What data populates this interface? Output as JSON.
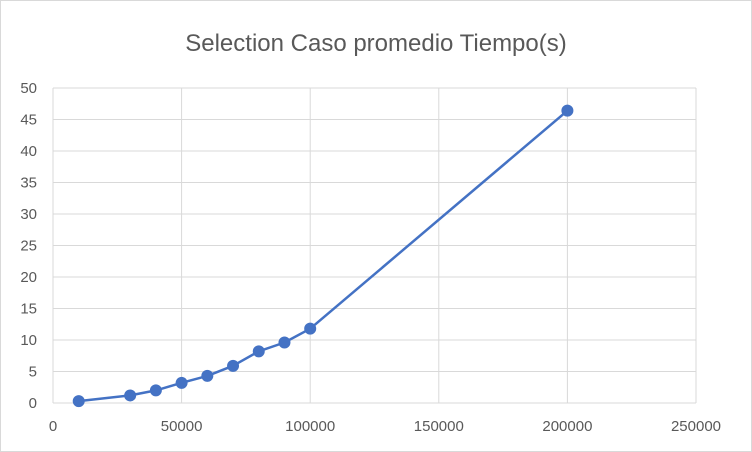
{
  "chart_data": {
    "type": "line",
    "title": "Selection Caso promedio Tiempo(s)",
    "xlabel": "",
    "ylabel": "",
    "xlim": [
      0,
      250000
    ],
    "ylim": [
      0,
      50
    ],
    "xticks": [
      0,
      50000,
      100000,
      150000,
      200000,
      250000
    ],
    "yticks": [
      0,
      5,
      10,
      15,
      20,
      25,
      30,
      35,
      40,
      45,
      50
    ],
    "grid": true,
    "legend": "none",
    "colors": {
      "series": "#4472c4",
      "grid": "#d9d9d9",
      "text": "#595959"
    },
    "series": [
      {
        "x": [
          10000,
          30000,
          40000,
          50000,
          60000,
          70000,
          80000,
          90000,
          100000,
          200000
        ],
        "y": [
          0.3,
          1.2,
          2.0,
          3.2,
          4.3,
          5.9,
          8.2,
          9.6,
          11.8,
          46.4
        ]
      }
    ]
  }
}
